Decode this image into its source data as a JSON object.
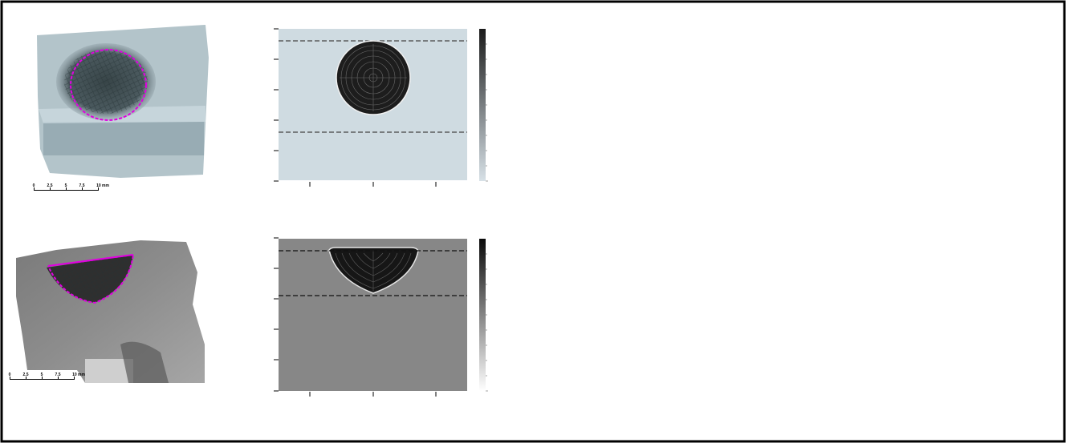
{
  "panels": [
    {
      "scale_labels": [
        "0",
        "2.5",
        "5",
        "7.5",
        "10 mm"
      ],
      "colors": {
        "tissue": "#aebdc4",
        "lesion": "#3c4a4e",
        "outline": "#e000e0",
        "model_bg": "#cfdbe1"
      }
    },
    {
      "scale_labels": [
        "0",
        "2.5",
        "5",
        "7.5",
        "10 mm"
      ],
      "colors": {
        "tissue": "#8a8a8a",
        "lesion": "#2a2a2a",
        "outline": "#e000e0",
        "model_bg": "#878787"
      }
    }
  ]
}
